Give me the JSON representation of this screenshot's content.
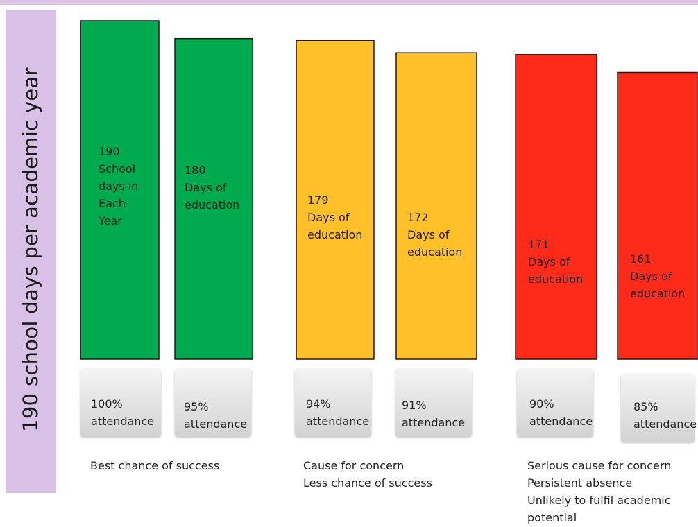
{
  "chart_data": {
    "type": "bar",
    "ylabel": "190 school days per academic year",
    "ylim": [
      0,
      190
    ],
    "categories": [
      "100% attendance",
      "95% attendance",
      "94% attendance",
      "91% attendance",
      "90% attendance",
      "85% attendance"
    ],
    "values": [
      190,
      180,
      179,
      172,
      171,
      161
    ],
    "bar_labels": [
      "190\nSchool\ndays in\nEach\nYear",
      "180\nDays of\neducation",
      "179\nDays of\neducation",
      "172\nDays of\neducation",
      "171\nDays of\neducation",
      "161\nDays of\neducation"
    ],
    "attendance": [
      "100%\nattendance",
      "95%\nattendance",
      "94%\nattendance",
      "91%\nattendance",
      "90%\nattendance",
      "85%\nattendance"
    ],
    "colors": [
      "#00aa4e",
      "#00aa4e",
      "#ffc02a",
      "#ffc02a",
      "#ff2b1a",
      "#ff2b1a"
    ],
    "group_notes": [
      "Best chance of success",
      "Cause for concern\nLess chance of success",
      "Serious cause for concern\nPersistent absence\nUnlikely to fulfil academic\npotential"
    ]
  }
}
